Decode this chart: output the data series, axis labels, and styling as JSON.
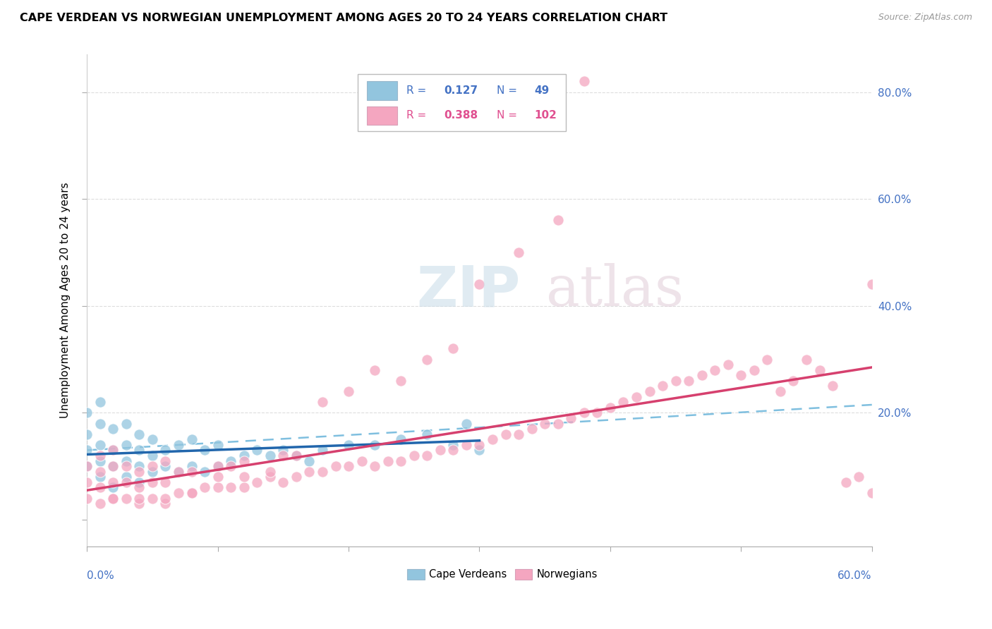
{
  "title": "CAPE VERDEAN VS NORWEGIAN UNEMPLOYMENT AMONG AGES 20 TO 24 YEARS CORRELATION CHART",
  "source": "Source: ZipAtlas.com",
  "ylabel": "Unemployment Among Ages 20 to 24 years",
  "xmin": 0.0,
  "xmax": 0.6,
  "ymin": -0.05,
  "ymax": 0.87,
  "legend_blue_label": "Cape Verdeans",
  "legend_pink_label": "Norwegians",
  "R_blue": 0.127,
  "N_blue": 49,
  "R_pink": 0.388,
  "N_pink": 102,
  "blue_color": "#92c5de",
  "pink_color": "#f4a6c0",
  "blue_line_color": "#2166ac",
  "pink_line_color": "#d6406e",
  "dashed_line_color": "#7fbfdf",
  "grid_color": "#dddddd",
  "watermark_zip_color": "#c8dce8",
  "watermark_atlas_color": "#d8c8d0",
  "right_tick_color": "#4472c4",
  "blue_x": [
    0.0,
    0.0,
    0.0,
    0.0,
    0.01,
    0.01,
    0.01,
    0.01,
    0.01,
    0.02,
    0.02,
    0.02,
    0.02,
    0.03,
    0.03,
    0.03,
    0.03,
    0.04,
    0.04,
    0.04,
    0.04,
    0.05,
    0.05,
    0.05,
    0.06,
    0.06,
    0.07,
    0.07,
    0.08,
    0.08,
    0.09,
    0.09,
    0.1,
    0.1,
    0.11,
    0.12,
    0.13,
    0.14,
    0.15,
    0.16,
    0.17,
    0.18,
    0.2,
    0.22,
    0.24,
    0.26,
    0.28,
    0.29,
    0.3
  ],
  "blue_y": [
    0.1,
    0.13,
    0.16,
    0.2,
    0.08,
    0.11,
    0.14,
    0.18,
    0.22,
    0.06,
    0.1,
    0.13,
    0.17,
    0.08,
    0.11,
    0.14,
    0.18,
    0.07,
    0.1,
    0.13,
    0.16,
    0.09,
    0.12,
    0.15,
    0.1,
    0.13,
    0.09,
    0.14,
    0.1,
    0.15,
    0.09,
    0.13,
    0.1,
    0.14,
    0.11,
    0.12,
    0.13,
    0.12,
    0.13,
    0.12,
    0.11,
    0.13,
    0.14,
    0.14,
    0.15,
    0.16,
    0.14,
    0.18,
    0.13
  ],
  "pink_x": [
    0.0,
    0.0,
    0.0,
    0.01,
    0.01,
    0.01,
    0.01,
    0.02,
    0.02,
    0.02,
    0.02,
    0.03,
    0.03,
    0.03,
    0.04,
    0.04,
    0.04,
    0.05,
    0.05,
    0.05,
    0.06,
    0.06,
    0.06,
    0.07,
    0.07,
    0.08,
    0.08,
    0.09,
    0.1,
    0.1,
    0.11,
    0.11,
    0.12,
    0.12,
    0.13,
    0.14,
    0.15,
    0.15,
    0.16,
    0.17,
    0.18,
    0.19,
    0.2,
    0.21,
    0.22,
    0.23,
    0.24,
    0.25,
    0.26,
    0.27,
    0.28,
    0.29,
    0.3,
    0.31,
    0.32,
    0.33,
    0.34,
    0.35,
    0.36,
    0.37,
    0.38,
    0.39,
    0.4,
    0.41,
    0.42,
    0.43,
    0.44,
    0.45,
    0.46,
    0.47,
    0.48,
    0.49,
    0.5,
    0.51,
    0.52,
    0.53,
    0.54,
    0.55,
    0.56,
    0.57,
    0.58,
    0.59,
    0.6,
    0.6,
    0.38,
    0.28,
    0.33,
    0.3,
    0.36,
    0.24,
    0.2,
    0.26,
    0.22,
    0.18,
    0.16,
    0.14,
    0.12,
    0.1,
    0.08,
    0.06,
    0.04,
    0.02
  ],
  "pink_y": [
    0.04,
    0.07,
    0.1,
    0.03,
    0.06,
    0.09,
    0.12,
    0.04,
    0.07,
    0.1,
    0.13,
    0.04,
    0.07,
    0.1,
    0.03,
    0.06,
    0.09,
    0.04,
    0.07,
    0.1,
    0.03,
    0.07,
    0.11,
    0.05,
    0.09,
    0.05,
    0.09,
    0.06,
    0.06,
    0.1,
    0.06,
    0.1,
    0.06,
    0.11,
    0.07,
    0.08,
    0.07,
    0.12,
    0.08,
    0.09,
    0.09,
    0.1,
    0.1,
    0.11,
    0.1,
    0.11,
    0.11,
    0.12,
    0.12,
    0.13,
    0.13,
    0.14,
    0.14,
    0.15,
    0.16,
    0.16,
    0.17,
    0.18,
    0.18,
    0.19,
    0.2,
    0.2,
    0.21,
    0.22,
    0.23,
    0.24,
    0.25,
    0.26,
    0.26,
    0.27,
    0.28,
    0.29,
    0.27,
    0.28,
    0.3,
    0.24,
    0.26,
    0.3,
    0.28,
    0.25,
    0.07,
    0.08,
    0.44,
    0.05,
    0.82,
    0.32,
    0.5,
    0.44,
    0.56,
    0.26,
    0.24,
    0.3,
    0.28,
    0.22,
    0.12,
    0.09,
    0.08,
    0.08,
    0.05,
    0.04,
    0.04,
    0.04
  ],
  "blue_line_x": [
    0.0,
    0.3
  ],
  "blue_line_y": [
    0.122,
    0.148
  ],
  "pink_line_x": [
    0.0,
    0.6
  ],
  "pink_line_y": [
    0.055,
    0.285
  ],
  "dash_line_x": [
    0.0,
    0.6
  ],
  "dash_line_y": [
    0.13,
    0.215
  ]
}
